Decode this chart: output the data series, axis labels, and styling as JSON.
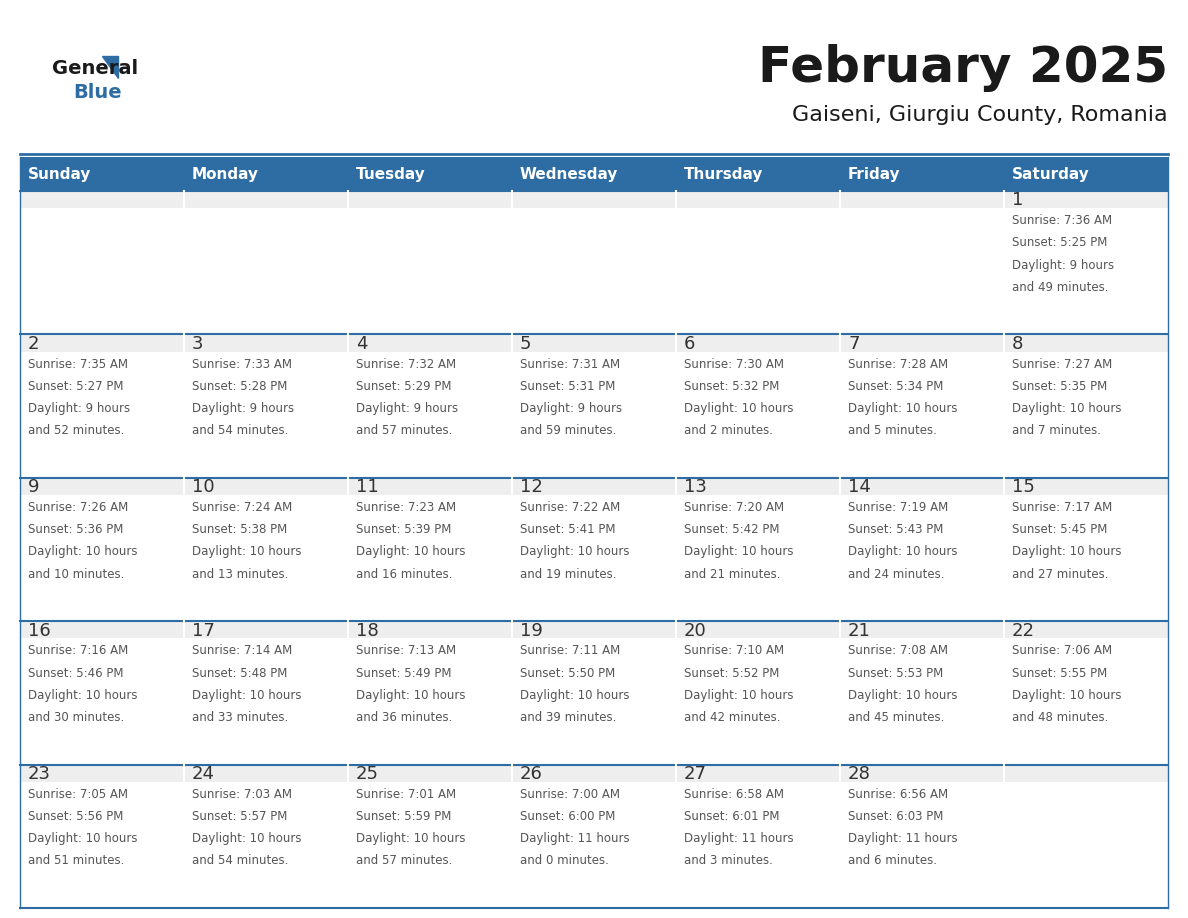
{
  "title": "February 2025",
  "subtitle": "Gaiseni, Giurgiu County, Romania",
  "days_of_week": [
    "Sunday",
    "Monday",
    "Tuesday",
    "Wednesday",
    "Thursday",
    "Friday",
    "Saturday"
  ],
  "header_bg": "#2e6da4",
  "header_text": "#ffffff",
  "cell_bg": "#ffffff",
  "cell_top_strip": "#eeeeee",
  "border_color": "#2e6da4",
  "text_color": "#555555",
  "day_num_color": "#333333",
  "title_color": "#1a1a1a",
  "logo_black": "#1a1a1a",
  "logo_blue": "#2e6da4",
  "num_rows": 5,
  "num_cols": 7,
  "calendar_data": [
    [
      null,
      null,
      null,
      null,
      null,
      null,
      {
        "day": 1,
        "sunrise": "7:36 AM",
        "sunset": "5:25 PM",
        "daylight_line1": "Daylight: 9 hours",
        "daylight_line2": "and 49 minutes."
      }
    ],
    [
      {
        "day": 2,
        "sunrise": "7:35 AM",
        "sunset": "5:27 PM",
        "daylight_line1": "Daylight: 9 hours",
        "daylight_line2": "and 52 minutes."
      },
      {
        "day": 3,
        "sunrise": "7:33 AM",
        "sunset": "5:28 PM",
        "daylight_line1": "Daylight: 9 hours",
        "daylight_line2": "and 54 minutes."
      },
      {
        "day": 4,
        "sunrise": "7:32 AM",
        "sunset": "5:29 PM",
        "daylight_line1": "Daylight: 9 hours",
        "daylight_line2": "and 57 minutes."
      },
      {
        "day": 5,
        "sunrise": "7:31 AM",
        "sunset": "5:31 PM",
        "daylight_line1": "Daylight: 9 hours",
        "daylight_line2": "and 59 minutes."
      },
      {
        "day": 6,
        "sunrise": "7:30 AM",
        "sunset": "5:32 PM",
        "daylight_line1": "Daylight: 10 hours",
        "daylight_line2": "and 2 minutes."
      },
      {
        "day": 7,
        "sunrise": "7:28 AM",
        "sunset": "5:34 PM",
        "daylight_line1": "Daylight: 10 hours",
        "daylight_line2": "and 5 minutes."
      },
      {
        "day": 8,
        "sunrise": "7:27 AM",
        "sunset": "5:35 PM",
        "daylight_line1": "Daylight: 10 hours",
        "daylight_line2": "and 7 minutes."
      }
    ],
    [
      {
        "day": 9,
        "sunrise": "7:26 AM",
        "sunset": "5:36 PM",
        "daylight_line1": "Daylight: 10 hours",
        "daylight_line2": "and 10 minutes."
      },
      {
        "day": 10,
        "sunrise": "7:24 AM",
        "sunset": "5:38 PM",
        "daylight_line1": "Daylight: 10 hours",
        "daylight_line2": "and 13 minutes."
      },
      {
        "day": 11,
        "sunrise": "7:23 AM",
        "sunset": "5:39 PM",
        "daylight_line1": "Daylight: 10 hours",
        "daylight_line2": "and 16 minutes."
      },
      {
        "day": 12,
        "sunrise": "7:22 AM",
        "sunset": "5:41 PM",
        "daylight_line1": "Daylight: 10 hours",
        "daylight_line2": "and 19 minutes."
      },
      {
        "day": 13,
        "sunrise": "7:20 AM",
        "sunset": "5:42 PM",
        "daylight_line1": "Daylight: 10 hours",
        "daylight_line2": "and 21 minutes."
      },
      {
        "day": 14,
        "sunrise": "7:19 AM",
        "sunset": "5:43 PM",
        "daylight_line1": "Daylight: 10 hours",
        "daylight_line2": "and 24 minutes."
      },
      {
        "day": 15,
        "sunrise": "7:17 AM",
        "sunset": "5:45 PM",
        "daylight_line1": "Daylight: 10 hours",
        "daylight_line2": "and 27 minutes."
      }
    ],
    [
      {
        "day": 16,
        "sunrise": "7:16 AM",
        "sunset": "5:46 PM",
        "daylight_line1": "Daylight: 10 hours",
        "daylight_line2": "and 30 minutes."
      },
      {
        "day": 17,
        "sunrise": "7:14 AM",
        "sunset": "5:48 PM",
        "daylight_line1": "Daylight: 10 hours",
        "daylight_line2": "and 33 minutes."
      },
      {
        "day": 18,
        "sunrise": "7:13 AM",
        "sunset": "5:49 PM",
        "daylight_line1": "Daylight: 10 hours",
        "daylight_line2": "and 36 minutes."
      },
      {
        "day": 19,
        "sunrise": "7:11 AM",
        "sunset": "5:50 PM",
        "daylight_line1": "Daylight: 10 hours",
        "daylight_line2": "and 39 minutes."
      },
      {
        "day": 20,
        "sunrise": "7:10 AM",
        "sunset": "5:52 PM",
        "daylight_line1": "Daylight: 10 hours",
        "daylight_line2": "and 42 minutes."
      },
      {
        "day": 21,
        "sunrise": "7:08 AM",
        "sunset": "5:53 PM",
        "daylight_line1": "Daylight: 10 hours",
        "daylight_line2": "and 45 minutes."
      },
      {
        "day": 22,
        "sunrise": "7:06 AM",
        "sunset": "5:55 PM",
        "daylight_line1": "Daylight: 10 hours",
        "daylight_line2": "and 48 minutes."
      }
    ],
    [
      {
        "day": 23,
        "sunrise": "7:05 AM",
        "sunset": "5:56 PM",
        "daylight_line1": "Daylight: 10 hours",
        "daylight_line2": "and 51 minutes."
      },
      {
        "day": 24,
        "sunrise": "7:03 AM",
        "sunset": "5:57 PM",
        "daylight_line1": "Daylight: 10 hours",
        "daylight_line2": "and 54 minutes."
      },
      {
        "day": 25,
        "sunrise": "7:01 AM",
        "sunset": "5:59 PM",
        "daylight_line1": "Daylight: 10 hours",
        "daylight_line2": "and 57 minutes."
      },
      {
        "day": 26,
        "sunrise": "7:00 AM",
        "sunset": "6:00 PM",
        "daylight_line1": "Daylight: 11 hours",
        "daylight_line2": "and 0 minutes."
      },
      {
        "day": 27,
        "sunrise": "6:58 AM",
        "sunset": "6:01 PM",
        "daylight_line1": "Daylight: 11 hours",
        "daylight_line2": "and 3 minutes."
      },
      {
        "day": 28,
        "sunrise": "6:56 AM",
        "sunset": "6:03 PM",
        "daylight_line1": "Daylight: 11 hours",
        "daylight_line2": "and 6 minutes."
      },
      null
    ]
  ]
}
